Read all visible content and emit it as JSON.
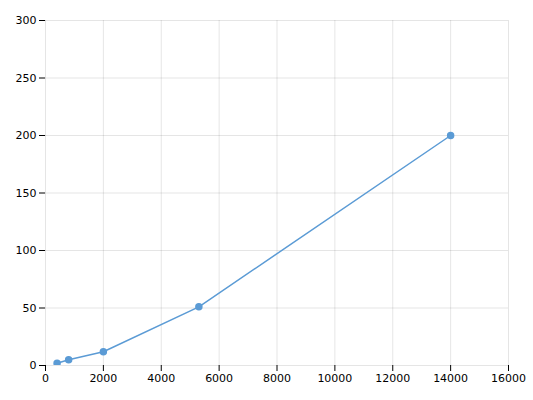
{
  "chart_data": {
    "type": "line",
    "x": [
      400,
      800,
      2000,
      5300,
      14000
    ],
    "values": [
      2,
      5,
      12,
      51,
      200
    ],
    "color": "#5b9bd5",
    "marker": "circle",
    "line_style": "solid",
    "xlim": [
      0,
      16000
    ],
    "ylim": [
      0,
      300
    ],
    "xticks": [
      0,
      2000,
      4000,
      6000,
      8000,
      10000,
      12000,
      14000,
      16000
    ],
    "yticks": [
      0,
      50,
      100,
      150,
      200,
      250,
      300
    ],
    "grid": true
  }
}
